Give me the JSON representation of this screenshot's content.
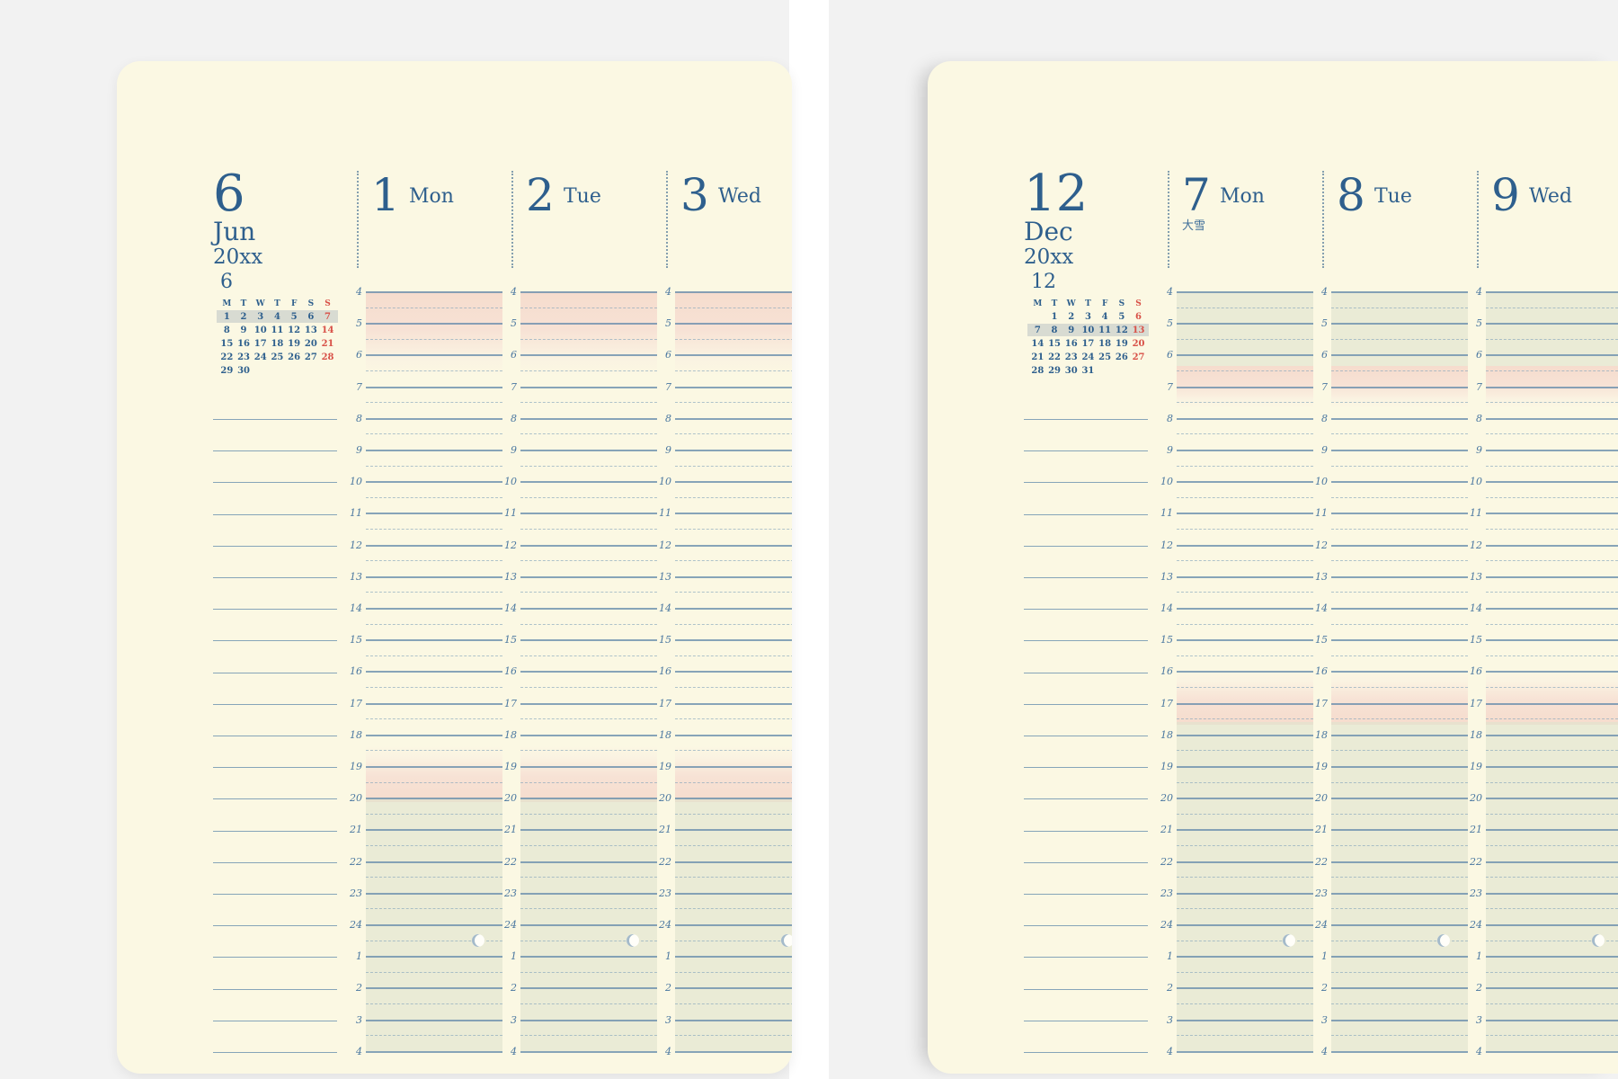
{
  "style": {
    "page_color": "#FBF8E3",
    "backdrop_color": "#f2f2f2",
    "gutter_color": "#ffffff",
    "ink_blue": "#2e5f8d",
    "line_blue": "#6a8fac",
    "sunday_red": "#d85148",
    "dawn_dusk_shade": "#f6dccd",
    "night_shade": "#dee4cf",
    "week_highlight": "#d8dbd2"
  },
  "hour_labels": [
    "4",
    "5",
    "6",
    "7",
    "8",
    "9",
    "10",
    "11",
    "12",
    "13",
    "14",
    "15",
    "16",
    "17",
    "18",
    "19",
    "20",
    "21",
    "22",
    "23",
    "24",
    "1",
    "2",
    "3",
    "4"
  ],
  "pages": [
    {
      "id": "june",
      "month_number": "6",
      "month_abbr": "Jun",
      "year": "20xx",
      "mini_month_label": "6",
      "mini_calendar": {
        "weekday_headers": [
          "M",
          "T",
          "W",
          "T",
          "F",
          "S",
          "S"
        ],
        "weeks": [
          [
            "1",
            "2",
            "3",
            "4",
            "5",
            "6",
            "7"
          ],
          [
            "8",
            "9",
            "10",
            "11",
            "12",
            "13",
            "14"
          ],
          [
            "15",
            "16",
            "17",
            "18",
            "19",
            "20",
            "21"
          ],
          [
            "22",
            "23",
            "24",
            "25",
            "26",
            "27",
            "28"
          ],
          [
            "29",
            "30",
            "",
            "",
            "",
            "",
            ""
          ]
        ],
        "highlighted_week": 0,
        "sunday_column": 6
      },
      "days": [
        {
          "number": "1",
          "weekday": "Mon",
          "seasonal_note": ""
        },
        {
          "number": "2",
          "weekday": "Tue",
          "seasonal_note": ""
        },
        {
          "number": "3",
          "weekday": "Wed",
          "seasonal_note": ""
        }
      ],
      "shading": [
        {
          "kind": "dawn",
          "from_hour": 4,
          "to_hour": 6.7
        },
        {
          "kind": "dusk",
          "from_hour": 18.35,
          "to_hour": 20.15
        },
        {
          "kind": "night",
          "from_hour": 20,
          "to_hour": 28
        }
      ],
      "moon_marker_hour": 24.5
    },
    {
      "id": "december",
      "month_number": "12",
      "month_abbr": "Dec",
      "year": "20xx",
      "mini_month_label": "12",
      "mini_calendar": {
        "weekday_headers": [
          "M",
          "T",
          "W",
          "T",
          "F",
          "S",
          "S"
        ],
        "weeks": [
          [
            "",
            "1",
            "2",
            "3",
            "4",
            "5",
            "6"
          ],
          [
            "7",
            "8",
            "9",
            "10",
            "11",
            "12",
            "13"
          ],
          [
            "14",
            "15",
            "16",
            "17",
            "18",
            "19",
            "20"
          ],
          [
            "21",
            "22",
            "23",
            "24",
            "25",
            "26",
            "27"
          ],
          [
            "28",
            "29",
            "30",
            "31",
            "",
            "",
            ""
          ]
        ],
        "highlighted_week": 1,
        "sunday_column": 6
      },
      "days": [
        {
          "number": "7",
          "weekday": "Mon",
          "seasonal_note": "大雪"
        },
        {
          "number": "8",
          "weekday": "Tue",
          "seasonal_note": ""
        },
        {
          "number": "9",
          "weekday": "Wed",
          "seasonal_note": ""
        }
      ],
      "shading": [
        {
          "kind": "night",
          "from_hour": 4,
          "to_hour": 6.7
        },
        {
          "kind": "dawn",
          "from_hour": 6.35,
          "to_hour": 7.7
        },
        {
          "kind": "dusk",
          "from_hour": 15.95,
          "to_hour": 17.7
        },
        {
          "kind": "night",
          "from_hour": 17.6,
          "to_hour": 28
        }
      ],
      "moon_marker_hour": 24.5
    }
  ]
}
